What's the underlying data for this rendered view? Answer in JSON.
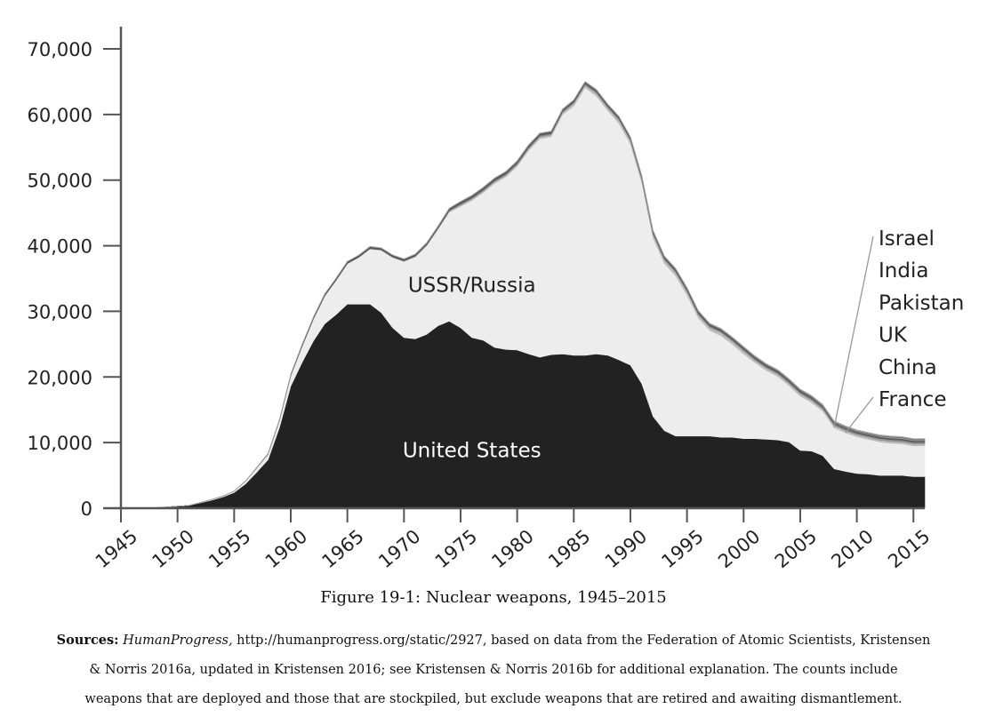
{
  "chart_data": {
    "type": "area",
    "stacked": true,
    "title": "Figure 19-1: Nuclear weapons, 1945–2015",
    "xlabel": "",
    "ylabel": "",
    "xlim": [
      1945,
      2016
    ],
    "ylim": [
      0,
      70000
    ],
    "x_ticks": [
      1945,
      1950,
      1955,
      1960,
      1965,
      1970,
      1975,
      1980,
      1985,
      1990,
      1995,
      2000,
      2005,
      2010,
      2015
    ],
    "y_ticks": [
      0,
      10000,
      20000,
      30000,
      40000,
      50000,
      60000,
      70000
    ],
    "y_tick_labels": [
      "0",
      "10,000",
      "20,000",
      "30,000",
      "40,000",
      "50,000",
      "60,000",
      "70,000"
    ],
    "x": [
      1945,
      1946,
      1947,
      1948,
      1949,
      1950,
      1951,
      1952,
      1953,
      1954,
      1955,
      1956,
      1957,
      1958,
      1959,
      1960,
      1961,
      1962,
      1963,
      1964,
      1965,
      1966,
      1967,
      1968,
      1969,
      1970,
      1971,
      1972,
      1973,
      1974,
      1975,
      1976,
      1977,
      1978,
      1979,
      1980,
      1981,
      1982,
      1983,
      1984,
      1985,
      1986,
      1987,
      1988,
      1989,
      1990,
      1991,
      1992,
      1993,
      1994,
      1995,
      1996,
      1997,
      1998,
      1999,
      2000,
      2001,
      2002,
      2003,
      2004,
      2005,
      2006,
      2007,
      2008,
      2009,
      2010,
      2011,
      2012,
      2013,
      2014,
      2015,
      2016
    ],
    "series": [
      {
        "name": "United States",
        "color": "#222222",
        "values": [
          2,
          9,
          13,
          50,
          170,
          300,
          400,
          800,
          1200,
          1700,
          2400,
          3700,
          5500,
          7400,
          12300,
          18600,
          22200,
          25500,
          28100,
          29500,
          31100,
          31100,
          31100,
          29800,
          27500,
          26000,
          25800,
          26500,
          27800,
          28500,
          27500,
          26000,
          25600,
          24500,
          24200,
          24100,
          23500,
          23000,
          23400,
          23500,
          23300,
          23300,
          23500,
          23300,
          22600,
          21800,
          19000,
          14000,
          11800,
          11000,
          11000,
          11000,
          11000,
          10800,
          10800,
          10600,
          10600,
          10500,
          10400,
          10100,
          8800,
          8700,
          8000,
          6000,
          5600,
          5300,
          5200,
          5000,
          5000,
          5000,
          4800,
          4800
        ]
      },
      {
        "name": "USSR/Russia",
        "color": "#ededed",
        "values": [
          0,
          0,
          0,
          0,
          1,
          5,
          25,
          50,
          120,
          150,
          200,
          400,
          650,
          850,
          1050,
          1600,
          2450,
          3350,
          4250,
          5200,
          6150,
          7100,
          8400,
          9500,
          10700,
          11600,
          12500,
          13500,
          14700,
          16600,
          18500,
          20900,
          22500,
          25000,
          26300,
          28000,
          31000,
          33300,
          33200,
          36500,
          38000,
          40800,
          39300,
          37300,
          36000,
          33700,
          30600,
          27200,
          25500,
          24400,
          21500,
          18000,
          16100,
          15500,
          14200,
          12900,
          11600,
          10500,
          9700,
          8600,
          8300,
          7400,
          6800,
          6300,
          5900,
          5600,
          5300,
          5100,
          4900,
          4800,
          4700,
          4700
        ]
      },
      {
        "name": "France",
        "color": "#bdbdbd",
        "values": [
          0,
          0,
          0,
          0,
          0,
          0,
          0,
          0,
          0,
          0,
          0,
          0,
          0,
          0,
          0,
          0,
          0,
          0,
          4,
          32,
          32,
          36,
          36,
          36,
          36,
          36,
          36,
          36,
          36,
          145,
          188,
          212,
          228,
          235,
          235,
          250,
          274,
          279,
          280,
          280,
          360,
          355,
          420,
          410,
          505,
          505,
          540,
          540,
          525,
          510,
          500,
          450,
          450,
          450,
          450,
          470,
          350,
          350,
          350,
          350,
          350,
          350,
          300,
          300,
          300,
          300,
          300,
          300,
          300,
          300,
          300,
          300
        ]
      },
      {
        "name": "China",
        "color": "#8e8e8e",
        "values": [
          0,
          0,
          0,
          0,
          0,
          0,
          0,
          0,
          0,
          0,
          0,
          0,
          0,
          0,
          0,
          0,
          0,
          0,
          0,
          1,
          5,
          20,
          25,
          35,
          50,
          75,
          100,
          130,
          150,
          170,
          185,
          190,
          200,
          205,
          210,
          205,
          210,
          215,
          220,
          225,
          235,
          240,
          240,
          235,
          235,
          235,
          235,
          235,
          235,
          235,
          235,
          235,
          235,
          235,
          235,
          235,
          235,
          235,
          235,
          235,
          235,
          235,
          235,
          240,
          245,
          250,
          250,
          255,
          260,
          260,
          260,
          260
        ]
      },
      {
        "name": "UK",
        "color": "#5a5a5a",
        "values": [
          0,
          0,
          0,
          0,
          0,
          0,
          0,
          0,
          1,
          10,
          20,
          40,
          70,
          100,
          150,
          205,
          270,
          280,
          310,
          310,
          310,
          310,
          310,
          280,
          308,
          280,
          280,
          275,
          275,
          275,
          350,
          350,
          350,
          350,
          350,
          350,
          350,
          335,
          320,
          270,
          300,
          300,
          300,
          300,
          300,
          300,
          300,
          300,
          300,
          300,
          300,
          300,
          281,
          281,
          281,
          281,
          281,
          281,
          281,
          281,
          281,
          281,
          225,
          225,
          225,
          225,
          225,
          225,
          225,
          225,
          215,
          215
        ]
      },
      {
        "name": "Pakistan",
        "color": "#9a9a9a",
        "values": [
          0,
          0,
          0,
          0,
          0,
          0,
          0,
          0,
          0,
          0,
          0,
          0,
          0,
          0,
          0,
          0,
          0,
          0,
          0,
          0,
          0,
          0,
          0,
          0,
          0,
          0,
          0,
          0,
          0,
          0,
          0,
          0,
          0,
          0,
          0,
          0,
          0,
          0,
          0,
          0,
          0,
          3,
          3,
          5,
          8,
          10,
          12,
          14,
          16,
          18,
          20,
          22,
          25,
          28,
          30,
          35,
          40,
          45,
          50,
          55,
          60,
          70,
          80,
          90,
          95,
          100,
          110,
          120,
          130,
          140,
          140,
          140
        ]
      },
      {
        "name": "India",
        "color": "#6e6e6e",
        "values": [
          0,
          0,
          0,
          0,
          0,
          0,
          0,
          0,
          0,
          0,
          0,
          0,
          0,
          0,
          0,
          0,
          0,
          0,
          0,
          0,
          0,
          0,
          0,
          0,
          0,
          0,
          0,
          0,
          0,
          0,
          0,
          0,
          0,
          0,
          0,
          0,
          0,
          0,
          0,
          0,
          0,
          0,
          0,
          0,
          5,
          10,
          15,
          20,
          25,
          30,
          35,
          40,
          45,
          50,
          55,
          60,
          65,
          70,
          70,
          75,
          80,
          85,
          90,
          95,
          100,
          105,
          110,
          115,
          120,
          125,
          130,
          130
        ]
      },
      {
        "name": "Israel",
        "color": "#b0b0b0",
        "values": [
          0,
          0,
          0,
          0,
          0,
          0,
          0,
          0,
          0,
          0,
          0,
          0,
          0,
          0,
          0,
          0,
          0,
          0,
          0,
          0,
          0,
          0,
          5,
          15,
          20,
          25,
          30,
          35,
          40,
          45,
          50,
          55,
          60,
          60,
          65,
          70,
          70,
          70,
          70,
          75,
          75,
          75,
          80,
          80,
          80,
          80,
          80,
          80,
          80,
          80,
          80,
          80,
          80,
          80,
          80,
          80,
          80,
          80,
          80,
          80,
          80,
          80,
          80,
          80,
          80,
          80,
          80,
          80,
          80,
          80,
          80,
          80
        ]
      }
    ],
    "area_labels": [
      {
        "series": "United States",
        "text": "United States",
        "x": 1976,
        "y": 7800,
        "color": "#ffffff"
      },
      {
        "series": "USSR/Russia",
        "text": "USSR/Russia",
        "x": 1976,
        "y": 33000,
        "color": "#222222"
      }
    ],
    "legend": {
      "placement": "right",
      "entries": [
        "Israel",
        "India",
        "Pakistan",
        "UK",
        "China",
        "France"
      ],
      "leader_lines": [
        {
          "series": "Israel",
          "x": 2008,
          "y": 12300
        },
        {
          "series": "France",
          "x": 2009,
          "y": 11500
        }
      ]
    }
  },
  "caption": {
    "title": "Figure 19-1: Nuclear weapons, 1945–2015",
    "sources_label": "Sources:",
    "sources_italic": "HumanProgress,",
    "sources_line1": " http://humanprogress.org/static/2927, based on data from the Federation of Atomic Scientists, Kristensen",
    "sources_line2": "& Norris 2016a, updated in Kristensen 2016; see Kristensen & Norris 2016b for additional explanation. The counts include",
    "sources_line3": "weapons that are deployed and those that are stockpiled, but exclude weapons that are retired and awaiting dismantlement."
  }
}
